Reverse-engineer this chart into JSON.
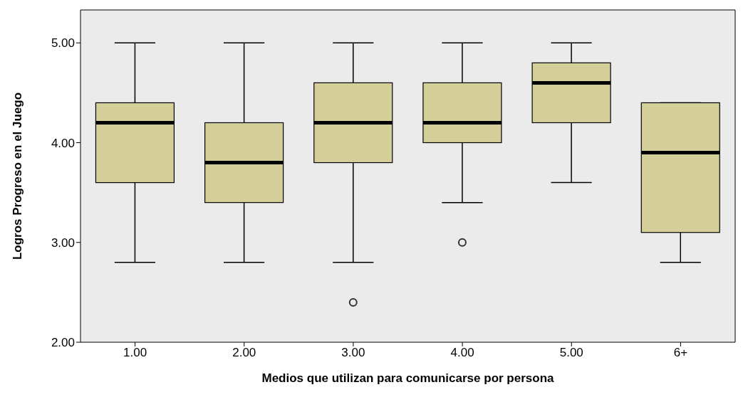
{
  "chart_data": {
    "type": "box",
    "xlabel": "Medios que utilizan para comunicarse por persona",
    "ylabel": "Logros Progreso en el Juego",
    "categories": [
      "1.00",
      "2.00",
      "3.00",
      "4.00",
      "5.00",
      "6+"
    ],
    "boxes": [
      {
        "low": 2.8,
        "q1": 3.6,
        "median": 4.2,
        "q3": 4.4,
        "high": 5.0
      },
      {
        "low": 2.8,
        "q1": 3.4,
        "median": 3.8,
        "q3": 4.2,
        "high": 5.0
      },
      {
        "low": 2.8,
        "q1": 3.8,
        "median": 4.2,
        "q3": 4.6,
        "high": 5.0,
        "outliers": [
          2.4
        ]
      },
      {
        "low": 3.4,
        "q1": 4.0,
        "median": 4.2,
        "q3": 4.6,
        "high": 5.0,
        "outliers": [
          3.0
        ]
      },
      {
        "low": 3.6,
        "q1": 4.2,
        "median": 4.6,
        "q3": 4.8,
        "high": 5.0
      },
      {
        "low": 2.8,
        "q1": 3.1,
        "median": 3.9,
        "q3": 4.4,
        "high": 4.4
      }
    ],
    "color": "#d4cf98",
    "ylim": [
      2,
      5.33
    ],
    "yticks": [
      {
        "value": 2,
        "label": "2.00"
      },
      {
        "value": 3,
        "label": "3.00"
      },
      {
        "value": 4,
        "label": "4.00"
      },
      {
        "value": 5,
        "label": "5.00"
      }
    ]
  }
}
